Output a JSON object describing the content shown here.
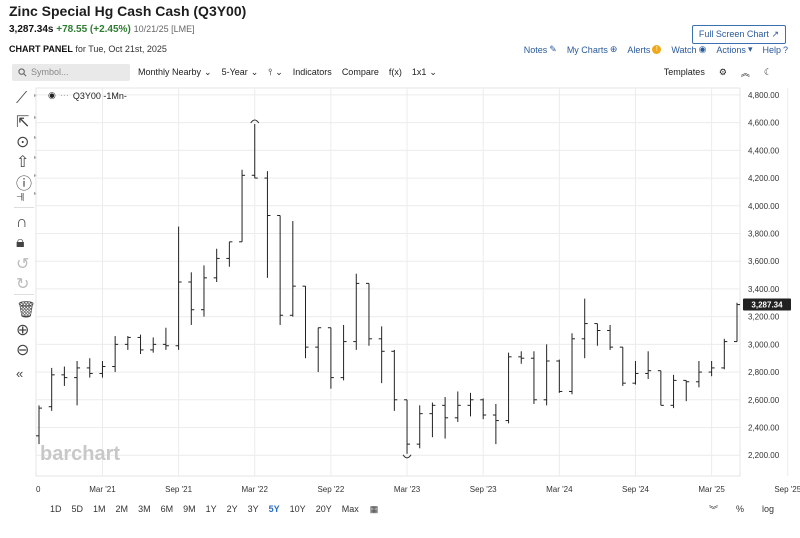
{
  "header": {
    "title": "Zinc Special Hg Cash Cash (Q3Y00)",
    "price": "3,287.34s",
    "change": "+78.55 (+2.45%)",
    "date": "10/21/25 [LME]",
    "fullscreen_label": "Full Screen Chart"
  },
  "panel": {
    "label": "CHART PANEL",
    "date_text": "for Tue, Oct 21st, 2025"
  },
  "toplinks": {
    "notes": "Notes",
    "mycharts": "My Charts",
    "alerts": "Alerts",
    "watch": "Watch",
    "actions": "Actions",
    "help": "Help"
  },
  "toolbar": {
    "search_placeholder": "Symbol...",
    "period": "Monthly Nearby",
    "range": "5-Year",
    "indicators": "Indicators",
    "compare": "Compare",
    "fx": "f(x)",
    "layout": "1x1",
    "templates": "Templates"
  },
  "series_label": "Q3Y00 -1Mn-",
  "watermark": "barchart",
  "current_price_label": "3,287.34",
  "bottom": {
    "ranges": [
      "1D",
      "5D",
      "1M",
      "2M",
      "3M",
      "6M",
      "9M",
      "1Y",
      "2Y",
      "3Y",
      "5Y",
      "10Y",
      "20Y",
      "Max"
    ],
    "active_range": "5Y",
    "percent": "%",
    "log": "log"
  },
  "colors": {
    "accent": "#2a6dc4",
    "price_tag": "#222222",
    "bars": "#222222",
    "positive": "#2e7d32"
  },
  "chart_data": {
    "type": "ohlc",
    "title": "Zinc Special Hg Cash Cash (Q3Y00)",
    "xlabel": "",
    "ylabel": "",
    "ylim": [
      2050,
      4850
    ],
    "yticks": [
      2200,
      2400,
      2600,
      2800,
      3000,
      3200,
      3400,
      3600,
      3800,
      4000,
      4200,
      4400,
      4600,
      4800
    ],
    "ytick_labels": [
      "2,200.00",
      "2,400.00",
      "2,600.00",
      "2,800.00",
      "3,000.00",
      "3,200.00",
      "3,400.00",
      "3,600.00",
      "3,800.00",
      "4,000.00",
      "4,200.00",
      "4,400.00",
      "4,600.00",
      "4,800.00"
    ],
    "xtick_labels": [
      "0",
      "Mar '21",
      "Sep '21",
      "Mar '22",
      "Sep '22",
      "Mar '23",
      "Sep '23",
      "Mar '24",
      "Sep '24",
      "Mar '25",
      "Sep '25"
    ],
    "xtick_index": [
      0,
      5,
      11,
      17,
      23,
      29,
      35,
      41,
      47,
      53,
      59
    ],
    "grid": true,
    "last_price": 3287.34,
    "high_marker": 4590,
    "low_marker": 2210,
    "bars": [
      [
        2340,
        2560,
        2280,
        2540
      ],
      [
        2550,
        2830,
        2520,
        2780
      ],
      [
        2780,
        2840,
        2700,
        2760
      ],
      [
        2760,
        2880,
        2560,
        2830
      ],
      [
        2830,
        2900,
        2760,
        2790
      ],
      [
        2790,
        2880,
        2760,
        2840
      ],
      [
        2840,
        3060,
        2800,
        3000
      ],
      [
        3000,
        3060,
        2960,
        3050
      ],
      [
        3050,
        3070,
        2930,
        2960
      ],
      [
        2960,
        3050,
        2940,
        3000
      ],
      [
        3000,
        3120,
        2960,
        2990
      ],
      [
        2990,
        3850,
        2960,
        3450
      ],
      [
        3450,
        3520,
        3140,
        3250
      ],
      [
        3250,
        3570,
        3200,
        3480
      ],
      [
        3480,
        3690,
        3450,
        3620
      ],
      [
        3620,
        3680,
        3560,
        3740
      ],
      [
        3740,
        4260,
        3740,
        4220
      ],
      [
        4220,
        4590,
        4200,
        4200
      ],
      [
        4200,
        4250,
        3480,
        3930
      ],
      [
        3930,
        3870,
        3140,
        3210
      ],
      [
        3210,
        3890,
        3200,
        3420
      ],
      [
        3420,
        3350,
        2900,
        2980
      ],
      [
        2980,
        3120,
        2800,
        3120
      ],
      [
        3120,
        3030,
        2680,
        2760
      ],
      [
        2760,
        3140,
        2740,
        3020
      ],
      [
        3020,
        3510,
        2960,
        3440
      ],
      [
        3440,
        3440,
        2990,
        3040
      ],
      [
        3040,
        3130,
        2720,
        2950
      ],
      [
        2950,
        2960,
        2520,
        2600
      ],
      [
        2600,
        2540,
        2210,
        2280
      ],
      [
        2280,
        2560,
        2250,
        2500
      ],
      [
        2500,
        2580,
        2330,
        2560
      ],
      [
        2560,
        2620,
        2320,
        2470
      ],
      [
        2470,
        2660,
        2440,
        2560
      ],
      [
        2560,
        2650,
        2480,
        2600
      ],
      [
        2600,
        2610,
        2460,
        2490
      ],
      [
        2490,
        2570,
        2280,
        2450
      ],
      [
        2450,
        2940,
        2430,
        2910
      ],
      [
        2910,
        2950,
        2860,
        2900
      ],
      [
        2900,
        2950,
        2570,
        2600
      ],
      [
        2600,
        3000,
        2560,
        2880
      ],
      [
        2880,
        2890,
        2650,
        2660
      ],
      [
        2660,
        3080,
        2640,
        3040
      ],
      [
        3040,
        3330,
        2900,
        3150
      ],
      [
        3150,
        3140,
        2990,
        3100
      ],
      [
        3100,
        3140,
        2960,
        2980
      ],
      [
        2980,
        2970,
        2700,
        2720
      ],
      [
        2720,
        2880,
        2710,
        2790
      ],
      [
        2790,
        2950,
        2750,
        2810
      ],
      [
        2810,
        2810,
        2560,
        2560
      ],
      [
        2560,
        2780,
        2540,
        2740
      ],
      [
        2740,
        2740,
        2590,
        2730
      ],
      [
        2730,
        2880,
        2690,
        2800
      ],
      [
        2800,
        2880,
        2770,
        2830
      ],
      [
        2830,
        3040,
        2820,
        3020
      ],
      [
        3020,
        3300,
        3030,
        3287
      ]
    ]
  }
}
